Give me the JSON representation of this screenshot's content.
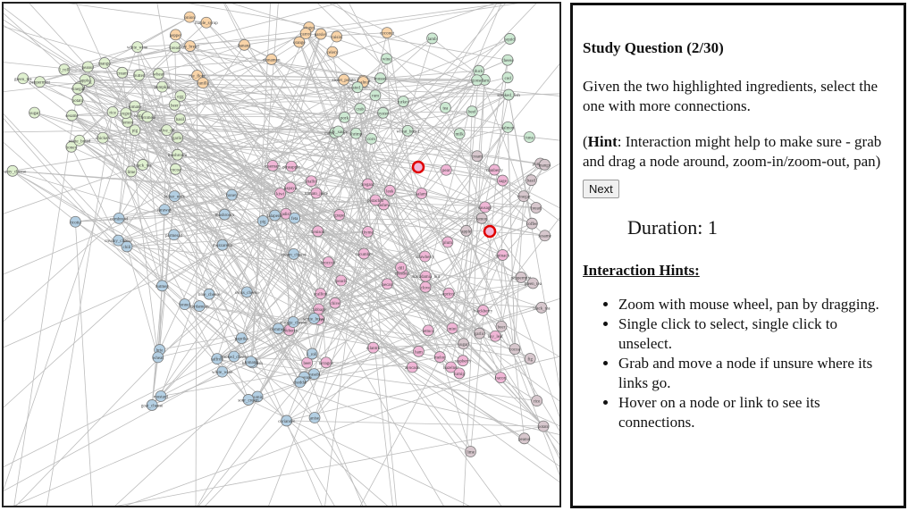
{
  "graph": {
    "colors": {
      "green": "#dff0cf",
      "orange": "#f9d4a8",
      "teal": "#cce9d2",
      "pink": "#f0b6d6",
      "blue": "#b3cfe3",
      "mauve": "#d7c7cd",
      "edge": "#bdbdbd",
      "highlight": "#e00000"
    },
    "node_labels": [
      "creamy_cheese",
      "l_roll",
      "cornbread",
      "honey",
      "cornmeal",
      "pig",
      "wheat",
      "white_bread",
      "white_wine",
      "tomato",
      "mushroom",
      "sugar",
      "garlic",
      "lemon",
      "cocoa",
      "coffee",
      "pumpkin",
      "peppermint",
      "fig",
      "basil",
      "black_tea",
      "green_tea",
      "rice",
      "peanut",
      "bread",
      "vinegar",
      "lime",
      "mango",
      "apple",
      "potato",
      "sesame",
      "cream",
      "beer",
      "olive_oil",
      "yogurt",
      "chicken",
      "egg",
      "butter",
      "orange",
      "banana",
      "sweet_potato",
      "rye_flour",
      "rye_bread",
      "maple_syrup",
      "coconut",
      "ginger",
      "cinnamon",
      "vanilla",
      "almond",
      "walnut",
      "raisin",
      "pepper",
      "onion",
      "carrot",
      "celery",
      "parsley",
      "cheese",
      "wheat_bread",
      "roasted_nut",
      "cured_pork",
      "milk",
      "soy_sauce",
      "corn",
      "tea",
      "wine",
      "rum",
      "pork",
      "beef",
      "lamb",
      "shrimp",
      "crab",
      "squid",
      "salmon",
      "tuna",
      "clam",
      "oyster",
      "cod",
      "mussel",
      "smoked_fish",
      "turkey",
      "duck",
      "goose",
      "venison",
      "bacon",
      "ham",
      "sausage",
      "salami",
      "pecan",
      "hazelnut",
      "cashew",
      "pistachio",
      "macadamia_nut",
      "chestnut",
      "plum",
      "pear",
      "peach",
      "cherry",
      "grape",
      "strawberry",
      "blueberry",
      "raspberry",
      "blackberry",
      "cranberry",
      "apricot",
      "melon",
      "kiwi",
      "papaya",
      "pineapple",
      "avocado",
      "tomato_juice",
      "cabbage",
      "broccoli",
      "spinach",
      "lettuce",
      "cucumber",
      "radish",
      "turnip",
      "beet",
      "leek",
      "scallion",
      "shallot",
      "chive",
      "dill",
      "sage",
      "thyme",
      "rosemary",
      "oregano",
      "tarragon",
      "mint",
      "cilantro",
      "bay_leaf",
      "clove",
      "nutmeg",
      "cardamom",
      "saffron",
      "paprika",
      "cumin",
      "coriander",
      "fennel",
      "anise",
      "caraway",
      "mustard",
      "horseradish",
      "wasabi",
      "chili",
      "jalapeno",
      "cayenne",
      "smoked_cheese",
      "blue_cheese",
      "cottage_cheese",
      "cream_cheese",
      "swiss_cheese",
      "parmesan",
      "mozzarella",
      "cheddar",
      "brie",
      "feta",
      "goat_cheese",
      "ricotta",
      "butter_milk",
      "sour_cream"
    ]
  },
  "study": {
    "title": "Study Question (2/30)",
    "question": "Given the two highlighted ingredients, select the one with more connections.",
    "hint_label": "Hint",
    "hint_text": ": Interaction might help to make sure - grab and drag a node around, zoom-in/zoom-out, pan)",
    "hint_open": "(",
    "next_label": "Next",
    "duration_label": "Duration: 1",
    "hints_title": "Interaction Hints:",
    "hints": [
      "Zoom with mouse wheel, pan by dragging.",
      "Single click to select, single click to unselect.",
      "Grab and move a node if unsure where its links go.",
      "Hover on a node or link to see its connections."
    ]
  }
}
